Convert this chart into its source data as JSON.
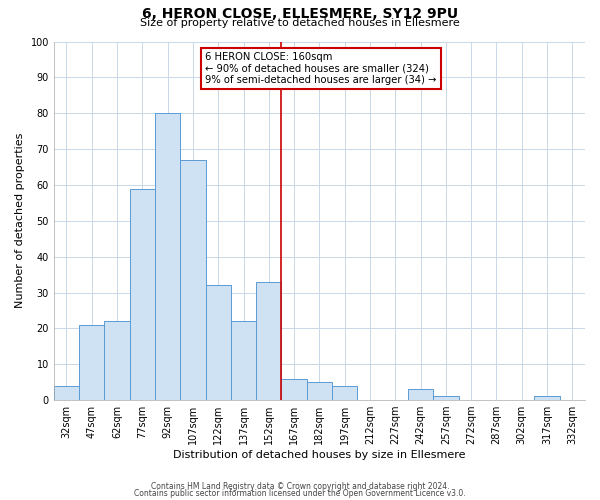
{
  "title": "6, HERON CLOSE, ELLESMERE, SY12 9PU",
  "subtitle": "Size of property relative to detached houses in Ellesmere",
  "xlabel": "Distribution of detached houses by size in Ellesmere",
  "ylabel": "Number of detached properties",
  "footer_line1": "Contains HM Land Registry data © Crown copyright and database right 2024.",
  "footer_line2": "Contains public sector information licensed under the Open Government Licence v3.0.",
  "bar_labels": [
    "32sqm",
    "47sqm",
    "62sqm",
    "77sqm",
    "92sqm",
    "107sqm",
    "122sqm",
    "137sqm",
    "152sqm",
    "167sqm",
    "182sqm",
    "197sqm",
    "212sqm",
    "227sqm",
    "242sqm",
    "257sqm",
    "272sqm",
    "287sqm",
    "302sqm",
    "317sqm",
    "332sqm"
  ],
  "bar_values": [
    4,
    21,
    22,
    59,
    80,
    67,
    32,
    22,
    33,
    6,
    5,
    4,
    0,
    0,
    3,
    1,
    0,
    0,
    0,
    1,
    0
  ],
  "bar_color": "#cfe2f3",
  "bar_edge_color": "#5b9bd5",
  "vline_color": "#cc0000",
  "vline_x_index": 8.5,
  "ylim": [
    0,
    100
  ],
  "annotation_text_line1": "6 HERON CLOSE: 160sqm",
  "annotation_text_line2": "← 90% of detached houses are smaller (324)",
  "annotation_text_line3": "9% of semi-detached houses are larger (34) →",
  "background_color": "#ffffff",
  "grid_color": "#c8d8e8",
  "title_fontsize": 10,
  "subtitle_fontsize": 8,
  "ylabel_fontsize": 8,
  "xlabel_fontsize": 8,
  "tick_fontsize": 7,
  "footer_fontsize": 5.5
}
